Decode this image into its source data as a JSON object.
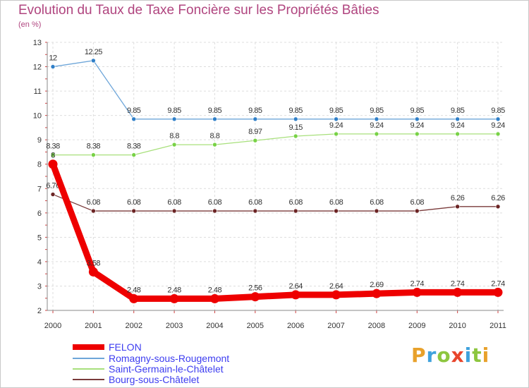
{
  "header": {
    "title": "Evolution du Taux de Taxe Foncière sur les Propriétés Bâties",
    "unit": "(en %)"
  },
  "brand": {
    "letters": [
      "P",
      "r",
      "o",
      "x",
      "i",
      "t",
      "i"
    ],
    "colors": [
      "#e8a12b",
      "#3fa2dd",
      "#8dc63f",
      "#e8452c",
      "#3fa2dd",
      "#8dc63f",
      "#e8a12b"
    ]
  },
  "chart_data": {
    "type": "line",
    "title": "Evolution du Taux de Taxe Foncière sur les Propriétés Bâties",
    "ylabel": "(en %)",
    "xlabel": "",
    "ylim": [
      2,
      13
    ],
    "yticks": [
      2,
      3,
      4,
      5,
      6,
      7,
      8,
      9,
      10,
      11,
      12,
      13
    ],
    "categories": [
      "2000",
      "2001",
      "2002",
      "2003",
      "2004",
      "2005",
      "2006",
      "2007",
      "2008",
      "2009",
      "2010",
      "2011"
    ],
    "series": [
      {
        "name": "Romagny-sous-Rougemont",
        "color": "#6ea6d9",
        "markerColor": "#2f7fc8",
        "bold": false,
        "values": [
          12,
          12.25,
          9.85,
          9.85,
          9.85,
          9.85,
          9.85,
          9.85,
          9.85,
          9.85,
          9.85,
          9.85
        ],
        "labels": [
          "12",
          "12.25",
          "9.85",
          "9.85",
          "9.85",
          "9.85",
          "9.85",
          "9.85",
          "9.85",
          "9.85",
          "9.85",
          "9.85"
        ]
      },
      {
        "name": "Saint-Germain-le-Châtelet",
        "color": "#a8e07c",
        "markerColor": "#78d246",
        "bold": false,
        "values": [
          8.38,
          8.38,
          8.38,
          8.8,
          8.8,
          8.97,
          9.15,
          9.24,
          9.24,
          9.24,
          9.24,
          9.24
        ],
        "labels": [
          "8.38",
          "8.38",
          "8.38",
          "8.8",
          "8.8",
          "8.97",
          "9.15",
          "9.24",
          "9.24",
          "9.24",
          "9.24",
          "9.24"
        ]
      },
      {
        "name": "Bourg-sous-Châtelet",
        "color": "#7a3b3b",
        "markerColor": "#6b2424",
        "bold": false,
        "values": [
          6.76,
          6.08,
          6.08,
          6.08,
          6.08,
          6.08,
          6.08,
          6.08,
          6.08,
          6.08,
          6.26,
          6.26
        ],
        "labels": [
          "6.76",
          "6.08",
          "6.08",
          "6.08",
          "6.08",
          "6.08",
          "6.08",
          "6.08",
          "6.08",
          "6.08",
          "6.26",
          "6.26"
        ]
      },
      {
        "name": "FELON",
        "color": "#ee0000",
        "markerColor": "#ee0000",
        "bold": true,
        "values": [
          8,
          3.58,
          2.48,
          2.48,
          2.48,
          2.56,
          2.64,
          2.64,
          2.69,
          2.74,
          2.74,
          2.74
        ],
        "labels": [
          "8",
          "3.58",
          "2.48",
          "2.48",
          "2.48",
          "2.56",
          "2.64",
          "2.64",
          "2.69",
          "2.74",
          "2.74",
          "2.74"
        ]
      }
    ],
    "legend": [
      "FELON",
      "Romagny-sous-Rougemont",
      "Saint-Germain-le-Châtelet",
      "Bourg-sous-Châtelet"
    ],
    "legend_position": "bottom-left",
    "grid": true
  }
}
